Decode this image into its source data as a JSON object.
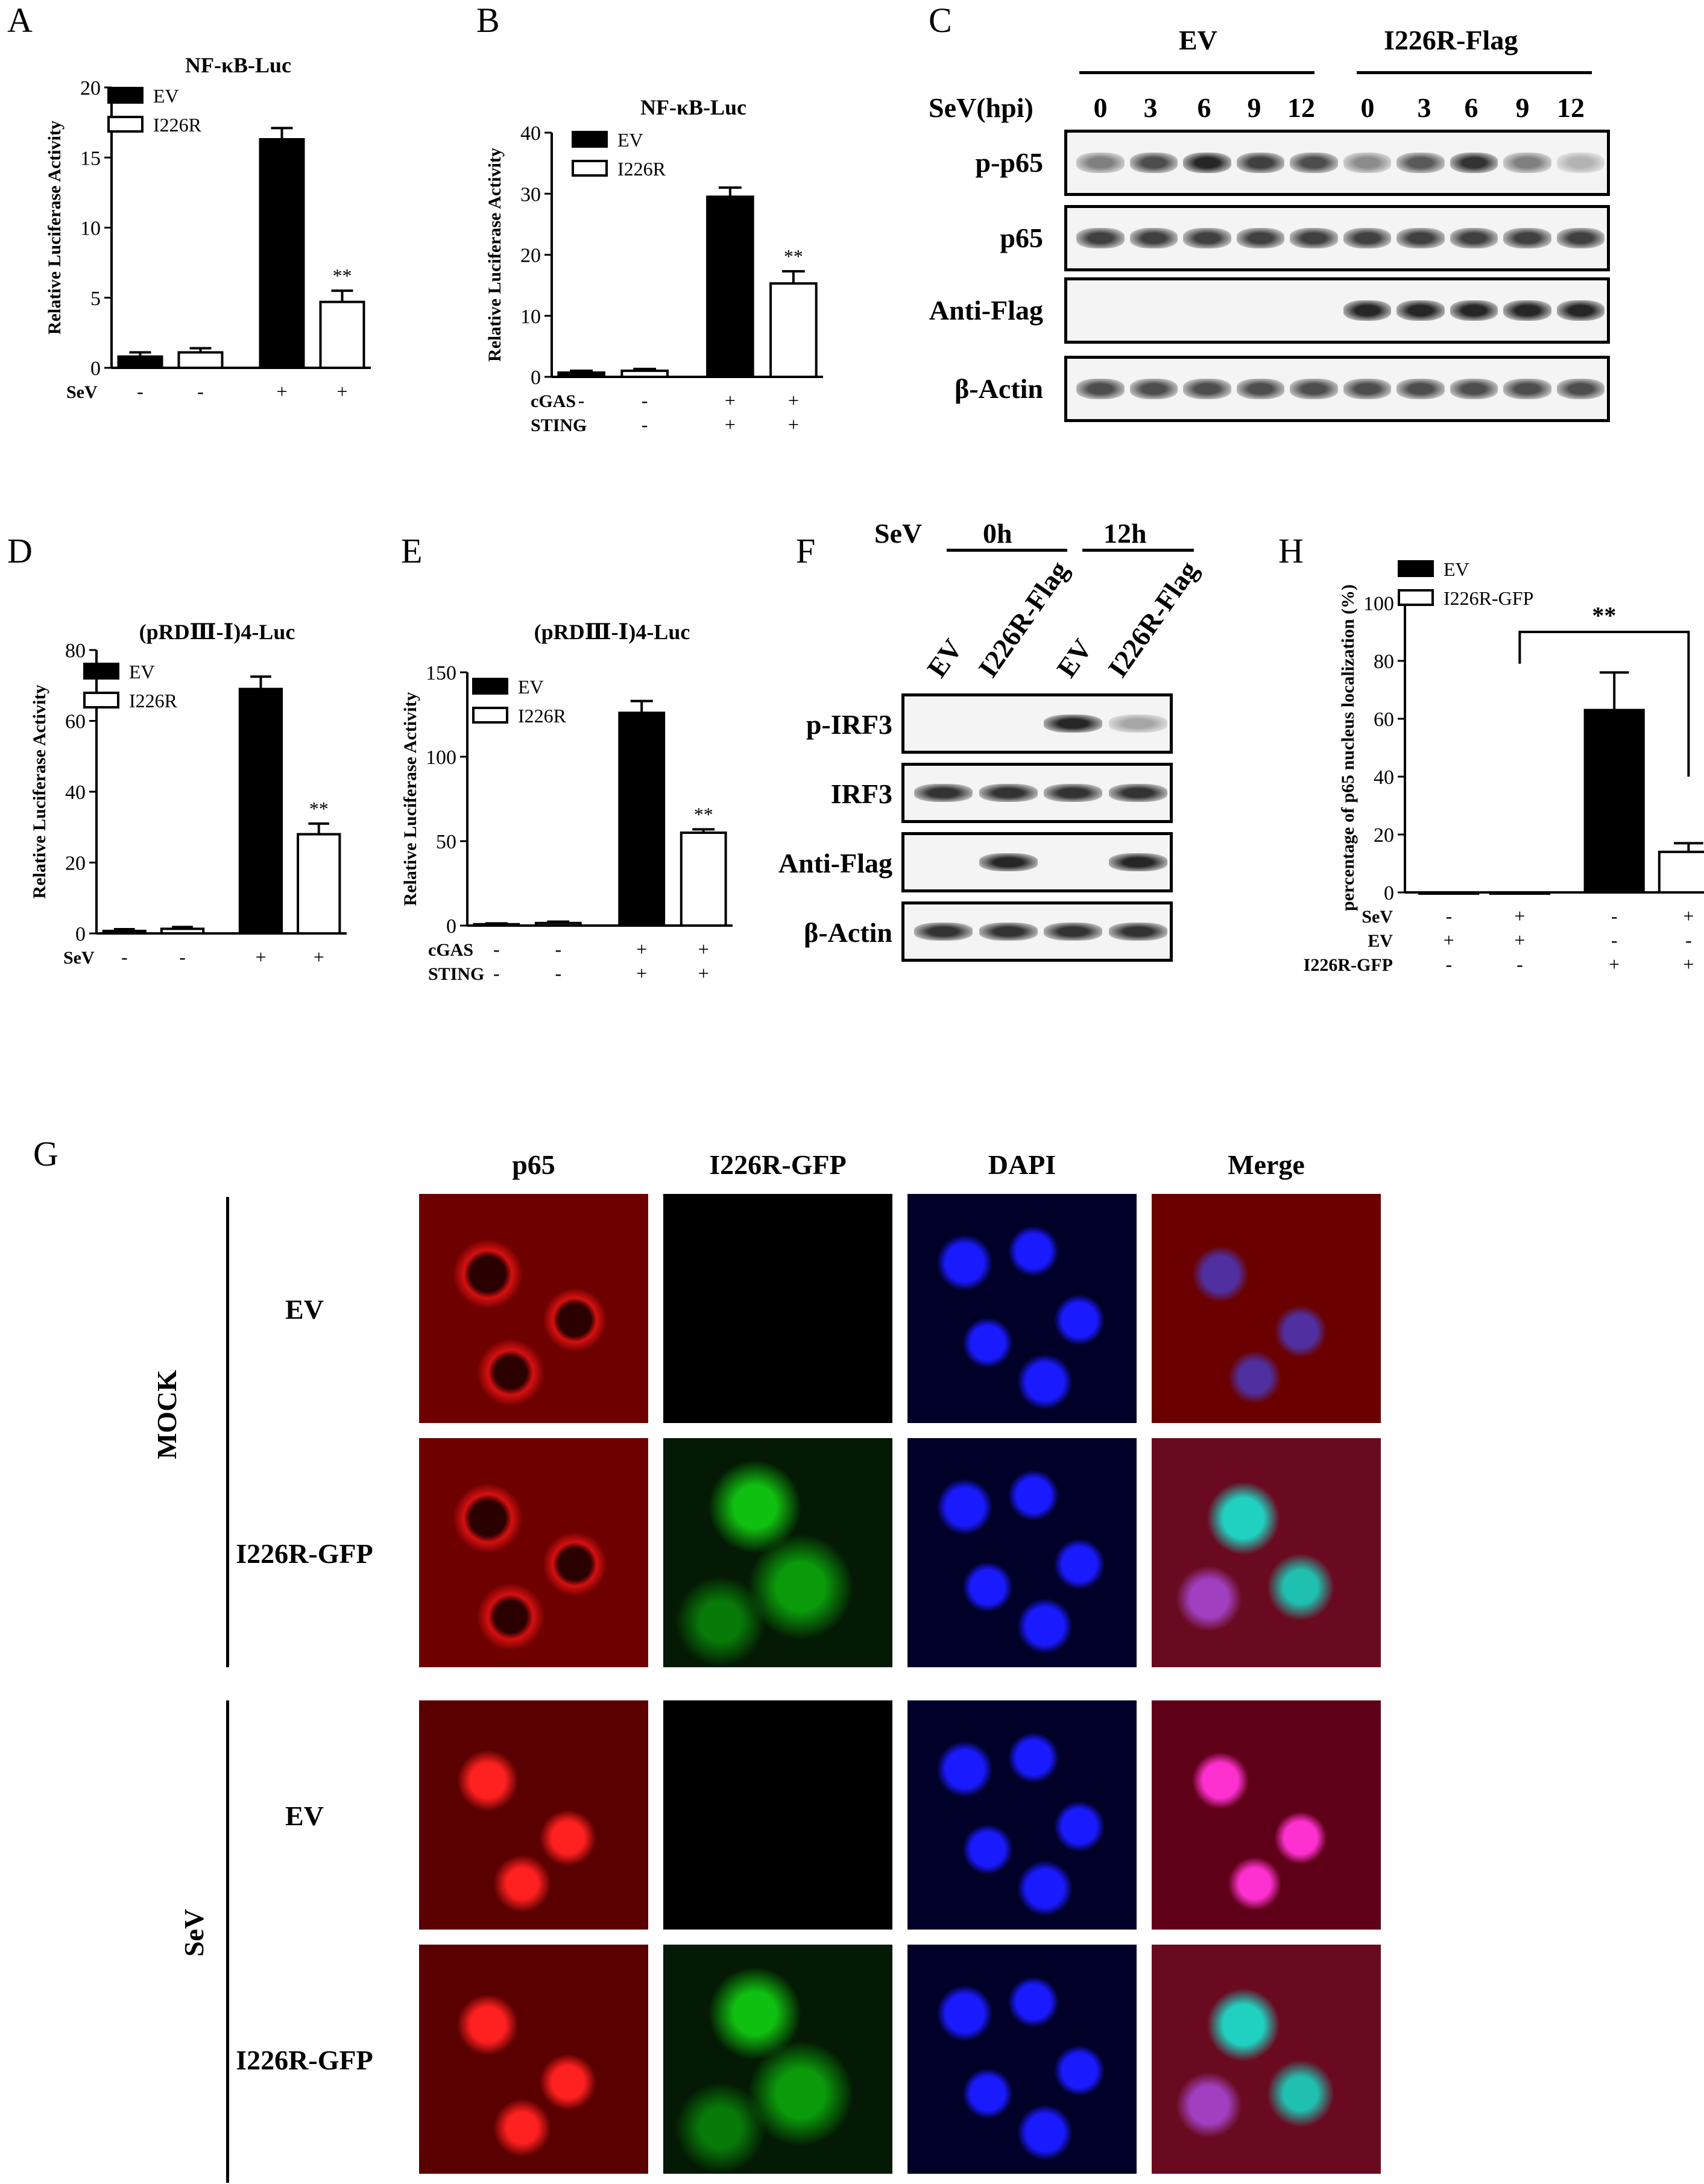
{
  "panels": {
    "A": {
      "label": "A",
      "chart_data": {
        "type": "bar",
        "title": "NF-κB-Luc",
        "ylabel": "Relative Luciferase Activity",
        "ylim": [
          0,
          20
        ],
        "yticks": [
          "0",
          "5",
          "10",
          "15",
          "20"
        ],
        "series": [
          {
            "name": "EV",
            "color": "#000000",
            "values": [
              0.8,
              16.3
            ]
          },
          {
            "name": "I226R",
            "color": "#ffffff",
            "values": [
              1.1,
              4.7
            ]
          }
        ],
        "errors": [
          [
            0.3,
            0.8
          ],
          [
            0.3,
            0.8
          ]
        ],
        "conditions": [
          {
            "name": "SeV",
            "values": [
              "-",
              "-",
              "+",
              "+"
            ]
          }
        ],
        "annotations": [
          "**"
        ]
      }
    },
    "B": {
      "label": "B",
      "chart_data": {
        "type": "bar",
        "title": "NF-κB-Luc",
        "ylabel": "Relative Luciferase Activity",
        "ylim": [
          0,
          40
        ],
        "yticks": [
          "0",
          "10",
          "20",
          "30",
          "40"
        ],
        "series": [
          {
            "name": "EV",
            "color": "#000000",
            "values": [
              0.7,
              29.5
            ]
          },
          {
            "name": "I226R",
            "color": "#ffffff",
            "values": [
              1.0,
              15.3
            ]
          }
        ],
        "errors": [
          [
            0.3,
            1.5
          ],
          [
            0.3,
            2.0
          ]
        ],
        "conditions": [
          {
            "name": "cGAS",
            "values": [
              "-",
              "-",
              "+",
              "+"
            ]
          },
          {
            "name": "STING",
            "values": [
              "-",
              "-",
              "+",
              "+"
            ]
          }
        ],
        "annotations": [
          "**"
        ]
      }
    },
    "D": {
      "label": "D",
      "chart_data": {
        "type": "bar",
        "title": "(pRDⅢ-Ⅰ)4-Luc",
        "ylabel": "Relative Luciferase Activity",
        "ylim": [
          0,
          80
        ],
        "yticks": [
          "0",
          "20",
          "40",
          "60",
          "80"
        ],
        "series": [
          {
            "name": "EV",
            "color": "#000000",
            "values": [
              0.7,
              69
            ]
          },
          {
            "name": "I226R",
            "color": "#ffffff",
            "values": [
              1.3,
              28
            ]
          }
        ],
        "errors": [
          [
            0.5,
            3.5
          ],
          [
            0.5,
            3.0
          ]
        ],
        "conditions": [
          {
            "name": "SeV",
            "values": [
              "-",
              "-",
              "+",
              "+"
            ]
          }
        ],
        "annotations": [
          "**"
        ]
      }
    },
    "E": {
      "label": "E",
      "chart_data": {
        "type": "bar",
        "title": "(pRDⅢ-Ⅰ)4-Luc",
        "ylabel": "Relative Luciferase Activity",
        "ylim": [
          0,
          150
        ],
        "yticks": [
          "0",
          "50",
          "100",
          "150"
        ],
        "series": [
          {
            "name": "EV",
            "color": "#000000",
            "values": [
              0.8,
              126
            ]
          },
          {
            "name": "I226R",
            "color": "#ffffff",
            "values": [
              1.5,
              55
            ]
          }
        ],
        "errors": [
          [
            0.5,
            7
          ],
          [
            0.8,
            2
          ]
        ],
        "conditions": [
          {
            "name": "cGAS",
            "values": [
              "-",
              "-",
              "+",
              "+"
            ]
          },
          {
            "name": "STING",
            "values": [
              "-",
              "-",
              "+",
              "+"
            ]
          }
        ],
        "annotations": [
          "**"
        ]
      }
    },
    "H": {
      "label": "H",
      "chart_data": {
        "type": "bar",
        "ylabel": "percentage of p65 nucleus localization (%)",
        "ylim": [
          0,
          100
        ],
        "yticks": [
          "0",
          "20",
          "40",
          "60",
          "80",
          "100"
        ],
        "series": [
          {
            "name": "EV",
            "color": "#000000",
            "values": [
              0,
              63
            ]
          },
          {
            "name": "I226R-GFP",
            "color": "#ffffff",
            "values": [
              0,
              14
            ]
          }
        ],
        "errors": [
          [
            0,
            13
          ],
          [
            0,
            3
          ]
        ],
        "conditions": [
          {
            "name": "SeV",
            "values": [
              "-",
              "+",
              "-",
              "+"
            ]
          },
          {
            "name": "EV",
            "values": [
              "+",
              "+",
              "-",
              "-"
            ]
          },
          {
            "name": "I226R-GFP",
            "values": [
              "-",
              "-",
              "+",
              "+"
            ]
          }
        ],
        "annotations": [
          "**"
        ]
      }
    },
    "C": {
      "label": "C",
      "groups": [
        "EV",
        "I226R-Flag"
      ],
      "row_header": "SeV(hpi)",
      "lanes": [
        "0",
        "3",
        "6",
        "9",
        "12",
        "0",
        "3",
        "6",
        "9",
        "12"
      ],
      "blots": [
        {
          "name": "p-p65",
          "intensity": [
            0.5,
            0.7,
            0.85,
            0.75,
            0.7,
            0.45,
            0.65,
            0.8,
            0.5,
            0.3
          ]
        },
        {
          "name": "p65",
          "intensity": [
            0.75,
            0.75,
            0.75,
            0.75,
            0.75,
            0.75,
            0.75,
            0.75,
            0.75,
            0.75
          ]
        },
        {
          "name": "Anti-Flag",
          "intensity": [
            0,
            0,
            0,
            0,
            0,
            0.85,
            0.85,
            0.85,
            0.85,
            0.85
          ]
        },
        {
          "name": "β-Actin",
          "intensity": [
            0.7,
            0.7,
            0.7,
            0.7,
            0.7,
            0.7,
            0.7,
            0.7,
            0.7,
            0.7
          ]
        }
      ]
    },
    "F": {
      "label": "F",
      "row_header": "SeV",
      "timepoints": [
        "0h",
        "12h"
      ],
      "lanes": [
        "EV",
        "I226R-Flag",
        "EV",
        "I226R-Flag"
      ],
      "blots": [
        {
          "name": "p-IRF3",
          "intensity": [
            0,
            0,
            0.85,
            0.35
          ]
        },
        {
          "name": "IRF3",
          "intensity": [
            0.8,
            0.8,
            0.8,
            0.8
          ]
        },
        {
          "name": "Anti-Flag",
          "intensity": [
            0,
            0.85,
            0,
            0.85
          ]
        },
        {
          "name": "β-Actin",
          "intensity": [
            0.8,
            0.8,
            0.8,
            0.8
          ]
        }
      ]
    },
    "G": {
      "label": "G",
      "columns": [
        "p65",
        "I226R-GFP",
        "DAPI",
        "Merge"
      ],
      "groups": [
        "MOCK",
        "SeV"
      ],
      "rows": [
        "EV",
        "I226R-GFP",
        "EV",
        "I226R-GFP"
      ]
    }
  }
}
